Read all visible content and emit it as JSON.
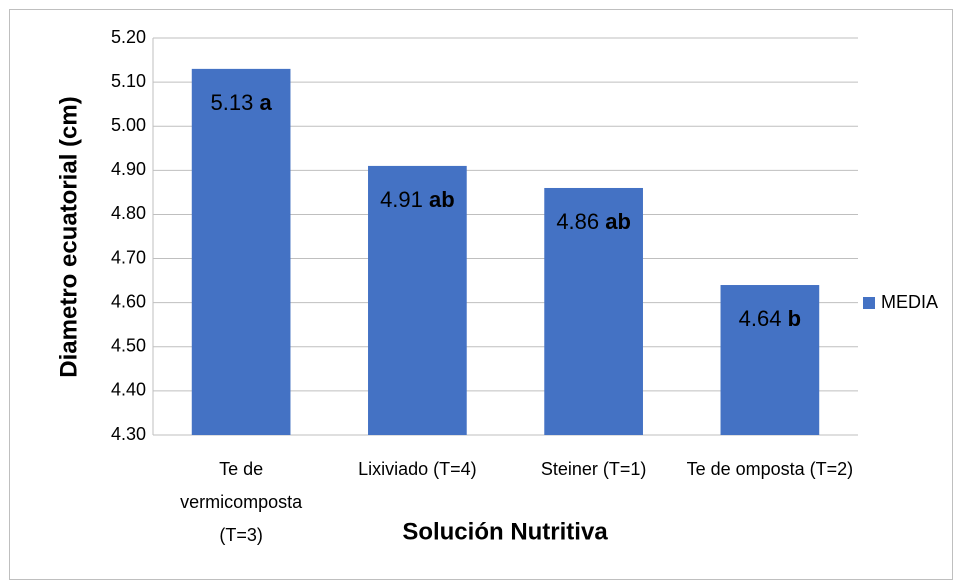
{
  "chart_data": {
    "type": "bar",
    "x_label": "Solución Nutritiva",
    "y_label": "Diametro ecuatorial (cm)",
    "categories": [
      "Te de vermicomposta (T=3)",
      "Lixiviado (T=4)",
      "Steiner (T=1)",
      "Te de omposta (T=2)"
    ],
    "series": [
      {
        "name": "MEDIA",
        "color": "#4472c4",
        "values": [
          5.13,
          4.91,
          4.86,
          4.64
        ],
        "value_labels": [
          "5.13 a",
          "4.91 ab",
          "4.86 ab",
          "4.64 b"
        ]
      }
    ],
    "ylim": [
      4.3,
      5.2
    ],
    "yticks": [
      {
        "value": 4.3,
        "label": "4.30"
      },
      {
        "value": 4.4,
        "label": "4.40"
      },
      {
        "value": 4.5,
        "label": "4.50"
      },
      {
        "value": 4.6,
        "label": "4.60"
      },
      {
        "value": 4.7,
        "label": "4.70"
      },
      {
        "value": 4.8,
        "label": "4.80"
      },
      {
        "value": 4.9,
        "label": "4.90"
      },
      {
        "value": 5.0,
        "label": "5.00"
      },
      {
        "value": 5.1,
        "label": "5.10"
      },
      {
        "value": 5.2,
        "label": "5.20"
      }
    ],
    "grid": true,
    "legend": "right"
  }
}
